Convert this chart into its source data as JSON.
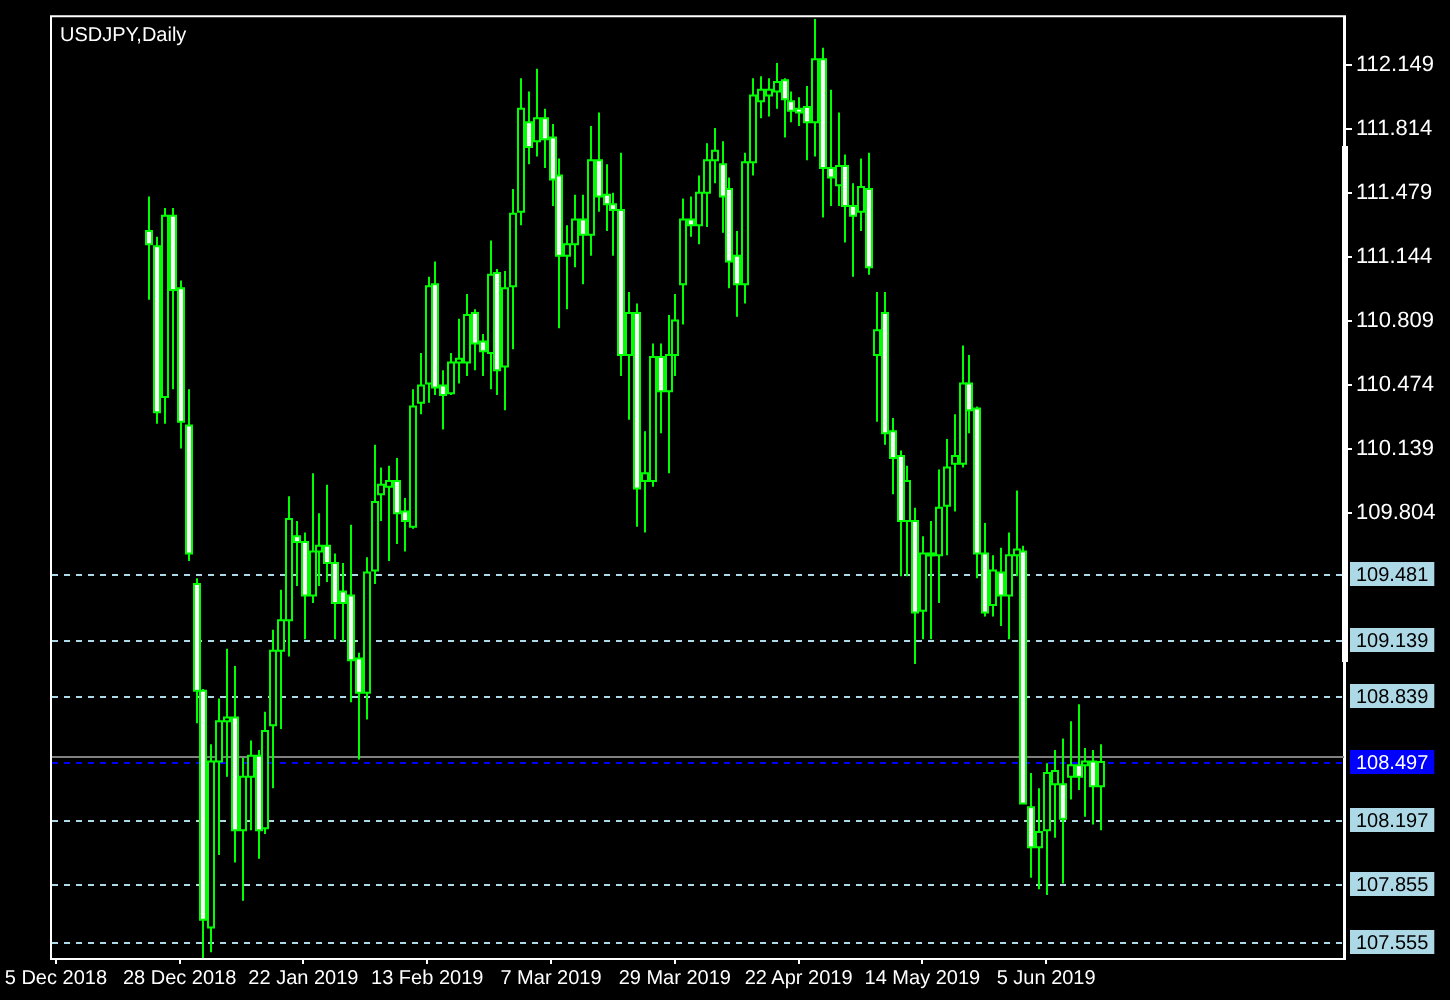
{
  "chart_data": {
    "type": "candlestick",
    "title": "USDJPY,Daily",
    "color": "#00ff00",
    "categories": [
      "5 Dec 2018",
      null,
      null,
      null,
      null,
      null,
      null,
      null,
      null,
      null,
      null,
      null,
      null,
      null,
      null,
      null,
      "28 Dec 2018",
      null,
      null,
      null,
      null,
      null,
      null,
      null,
      null,
      null,
      null,
      null,
      null,
      null,
      null,
      null,
      "22 Jan 2019",
      null,
      null,
      null,
      null,
      null,
      null,
      null,
      null,
      null,
      null,
      null,
      null,
      null,
      null,
      null,
      "13 Feb 2019",
      null,
      null,
      null,
      null,
      null,
      null,
      null,
      null,
      null,
      null,
      null,
      null,
      null,
      null,
      null,
      "7 Mar 2019",
      null,
      null,
      null,
      null,
      null,
      null,
      null,
      null,
      null,
      null,
      null,
      null,
      null,
      null,
      null,
      "29 Mar 2019",
      null,
      null,
      null,
      null,
      null,
      null,
      null,
      null,
      null,
      null,
      null,
      null,
      null,
      null,
      null,
      "22 Apr 2019",
      null,
      null,
      null,
      null,
      null,
      null,
      null,
      null,
      null,
      null,
      null,
      null,
      null,
      null,
      null,
      "14 May 2019",
      null,
      null,
      null,
      null,
      null,
      null,
      null,
      null,
      null,
      null,
      null,
      null,
      null,
      null,
      null,
      "5 Jun 2019",
      null,
      null,
      null,
      null,
      null,
      null,
      null,
      null,
      null,
      null,
      null,
      null,
      null,
      null,
      null,
      null,
      null,
      null,
      null,
      null,
      null,
      null,
      null,
      null,
      null,
      null,
      null,
      null,
      null,
      null,
      null,
      null,
      null,
      null,
      null,
      null,
      null,
      null
    ],
    "ohlc": [
      null,
      null,
      null,
      null,
      null,
      null,
      null,
      null,
      null,
      null,
      null,
      null,
      [
        111.28,
        111.46,
        110.92,
        111.21
      ],
      [
        111.2,
        111.25,
        110.27,
        110.33
      ],
      [
        110.41,
        111.4,
        110.27,
        111.36
      ],
      [
        111.36,
        111.4,
        110.45,
        110.97
      ],
      [
        110.98,
        111.02,
        110.14,
        110.28
      ],
      [
        110.26,
        110.45,
        109.55,
        109.59
      ],
      [
        109.43,
        109.46,
        108.7,
        108.87
      ],
      [
        108.87,
        108.88,
        107.47,
        107.67
      ],
      [
        107.63,
        108.59,
        107.5,
        108.5
      ],
      [
        108.5,
        108.83,
        108.01,
        108.71
      ],
      [
        108.71,
        109.09,
        108.42,
        108.73
      ],
      [
        108.73,
        109.0,
        107.97,
        108.14
      ],
      [
        108.14,
        108.52,
        107.77,
        108.42
      ],
      [
        108.42,
        108.61,
        108.14,
        108.53
      ],
      [
        108.53,
        108.56,
        107.99,
        108.14
      ],
      [
        108.15,
        108.76,
        108.12,
        108.66
      ],
      [
        108.69,
        109.19,
        108.36,
        109.08
      ],
      [
        109.08,
        109.4,
        108.67,
        109.24
      ],
      [
        109.24,
        109.89,
        109.05,
        109.77
      ],
      [
        109.68,
        109.76,
        109.42,
        109.65
      ],
      [
        109.65,
        109.7,
        109.14,
        109.37
      ],
      [
        109.37,
        110.01,
        109.33,
        109.6
      ],
      [
        109.6,
        109.8,
        109.42,
        109.63
      ],
      [
        109.63,
        109.95,
        109.44,
        109.54
      ],
      [
        109.54,
        109.59,
        109.14,
        109.33
      ],
      [
        109.39,
        109.54,
        109.13,
        109.33
      ],
      [
        109.37,
        109.74,
        108.81,
        109.03
      ],
      [
        109.04,
        109.07,
        108.51,
        108.86
      ],
      [
        108.86,
        109.57,
        108.72,
        109.49
      ],
      [
        109.5,
        110.16,
        109.43,
        109.86
      ],
      [
        109.9,
        110.04,
        109.76,
        109.95
      ],
      [
        109.94,
        110.05,
        109.55,
        109.97
      ],
      [
        109.97,
        110.09,
        109.64,
        109.8
      ],
      [
        109.81,
        109.88,
        109.6,
        109.76
      ],
      [
        109.73,
        110.45,
        109.72,
        110.36
      ],
      [
        110.38,
        110.64,
        110.32,
        110.47
      ],
      [
        110.48,
        111.04,
        110.38,
        110.99
      ],
      [
        111.0,
        111.12,
        110.42,
        110.46
      ],
      [
        110.47,
        110.55,
        110.24,
        110.42
      ],
      [
        110.43,
        110.64,
        110.42,
        110.59
      ],
      [
        110.59,
        110.82,
        110.48,
        110.61
      ],
      [
        110.59,
        110.95,
        110.52,
        110.84
      ],
      [
        110.85,
        110.87,
        110.55,
        110.69
      ],
      [
        110.7,
        110.74,
        110.52,
        110.65
      ],
      [
        110.64,
        111.23,
        110.45,
        111.05
      ],
      [
        111.06,
        111.08,
        110.42,
        110.55
      ],
      [
        110.57,
        111.07,
        110.34,
        110.98
      ],
      [
        110.99,
        111.5,
        110.66,
        111.37
      ],
      [
        111.38,
        112.08,
        111.31,
        111.92
      ],
      [
        111.85,
        112.01,
        111.63,
        111.72
      ],
      [
        111.75,
        112.13,
        111.67,
        111.87
      ],
      [
        111.87,
        111.92,
        111.61,
        111.76
      ],
      [
        111.77,
        111.84,
        111.41,
        111.55
      ],
      [
        111.57,
        111.66,
        110.77,
        111.15
      ],
      [
        111.15,
        111.31,
        110.87,
        111.21
      ],
      [
        111.21,
        111.47,
        111.09,
        111.34
      ],
      [
        111.34,
        111.47,
        111.0,
        111.26
      ],
      [
        111.26,
        111.83,
        111.15,
        111.65
      ],
      [
        111.65,
        111.9,
        111.38,
        111.46
      ],
      [
        111.47,
        111.63,
        111.28,
        111.42
      ],
      [
        111.42,
        111.48,
        111.15,
        111.39
      ],
      [
        111.39,
        111.69,
        110.52,
        110.63
      ],
      [
        110.63,
        110.96,
        110.29,
        110.85
      ],
      [
        110.85,
        110.9,
        109.73,
        109.93
      ],
      [
        109.97,
        110.23,
        109.7,
        110.01
      ],
      [
        109.97,
        110.69,
        109.94,
        110.62
      ],
      [
        110.62,
        110.69,
        110.22,
        110.44
      ],
      [
        110.44,
        110.84,
        110.01,
        110.63
      ],
      [
        110.63,
        110.95,
        110.52,
        110.81
      ],
      [
        111.0,
        111.45,
        110.79,
        111.34
      ],
      [
        111.34,
        111.46,
        111.25,
        111.31
      ],
      [
        111.31,
        111.57,
        111.21,
        111.48
      ],
      [
        111.48,
        111.74,
        111.3,
        111.65
      ],
      [
        111.65,
        111.82,
        111.53,
        111.7
      ],
      [
        111.63,
        111.75,
        111.27,
        111.46
      ],
      [
        111.5,
        111.56,
        110.98,
        111.12
      ],
      [
        111.15,
        111.28,
        110.83,
        111.0
      ],
      [
        111.0,
        111.69,
        110.9,
        111.64
      ],
      [
        111.64,
        112.08,
        111.57,
        111.99
      ],
      [
        111.96,
        112.09,
        111.87,
        112.02
      ],
      [
        111.99,
        112.08,
        111.88,
        112.02
      ],
      [
        112.01,
        112.16,
        111.92,
        112.06
      ],
      [
        112.07,
        112.08,
        111.77,
        111.97
      ],
      [
        111.96,
        112.01,
        111.85,
        111.91
      ],
      [
        111.92,
        111.98,
        111.83,
        111.9
      ],
      [
        111.93,
        112.04,
        111.65,
        111.85
      ],
      [
        111.85,
        112.39,
        111.67,
        112.18
      ],
      [
        112.18,
        112.24,
        111.35,
        111.61
      ],
      [
        111.61,
        112.02,
        111.41,
        111.56
      ],
      [
        111.52,
        111.9,
        111.41,
        111.62
      ],
      [
        111.62,
        111.68,
        111.22,
        111.41
      ],
      [
        111.41,
        111.53,
        111.04,
        111.36
      ],
      [
        111.38,
        111.66,
        111.28,
        111.51
      ],
      [
        111.5,
        111.69,
        111.05,
        111.09
      ],
      [
        110.63,
        110.96,
        110.28,
        110.76
      ],
      [
        110.85,
        110.96,
        110.16,
        110.22
      ],
      [
        110.23,
        110.3,
        109.9,
        110.09
      ],
      [
        110.1,
        110.13,
        109.47,
        109.76
      ],
      [
        109.76,
        110.05,
        109.47,
        109.97
      ],
      [
        109.76,
        109.83,
        109.01,
        109.28
      ],
      [
        109.29,
        109.68,
        109.14,
        109.59
      ],
      [
        109.58,
        109.76,
        109.14,
        109.59
      ],
      [
        109.58,
        110.03,
        109.33,
        109.83
      ],
      [
        109.84,
        110.19,
        109.58,
        110.04
      ],
      [
        110.06,
        110.32,
        109.81,
        110.1
      ],
      [
        110.06,
        110.68,
        110.04,
        110.48
      ],
      [
        110.48,
        110.63,
        110.22,
        110.34
      ],
      [
        110.35,
        110.36,
        109.46,
        109.59
      ],
      [
        109.59,
        109.75,
        109.26,
        109.28
      ],
      [
        109.32,
        109.58,
        109.26,
        109.5
      ],
      [
        109.49,
        109.62,
        109.21,
        109.37
      ],
      [
        109.37,
        109.7,
        109.14,
        109.58
      ],
      [
        109.58,
        109.92,
        109.47,
        109.61
      ],
      [
        109.6,
        109.63,
        108.28,
        108.28
      ],
      [
        108.26,
        108.44,
        107.89,
        108.05
      ],
      [
        108.05,
        108.36,
        107.83,
        108.13
      ],
      [
        108.14,
        108.49,
        107.8,
        108.44
      ],
      [
        108.38,
        108.56,
        108.1,
        108.45
      ],
      [
        108.38,
        108.62,
        107.86,
        108.2
      ],
      [
        108.42,
        108.71,
        108.3,
        108.48
      ],
      [
        108.48,
        108.8,
        108.35,
        108.42
      ],
      [
        108.48,
        108.57,
        108.21,
        108.5
      ],
      [
        108.5,
        108.56,
        108.17,
        108.37
      ],
      [
        108.37,
        108.59,
        108.14,
        108.497
      ],
      null,
      null,
      null,
      null,
      null,
      null,
      null,
      null,
      null,
      null,
      null,
      null,
      null,
      null,
      null,
      null,
      null,
      null,
      null,
      null,
      null,
      null,
      null,
      null,
      null,
      null,
      null,
      null,
      null,
      null,
      null
    ],
    "ylim": [
      107.47,
      112.4
    ],
    "yticks": [
      112.149,
      111.814,
      111.479,
      111.144,
      110.809,
      110.474,
      110.139,
      109.804
    ],
    "ref_lines": [
      {
        "axis": "y",
        "value": 109.481,
        "label": "109.481",
        "color": "#add8e6",
        "line_style": "dashed"
      },
      {
        "axis": "y",
        "value": 109.139,
        "label": "109.139",
        "color": "#add8e6",
        "line_style": "dashed"
      },
      {
        "axis": "y",
        "value": 108.839,
        "label": "108.839",
        "color": "#add8e6",
        "line_style": "dashed"
      },
      {
        "axis": "y",
        "value": 108.197,
        "label": "108.197",
        "color": "#add8e6",
        "line_style": "dashed"
      },
      {
        "axis": "y",
        "value": 107.855,
        "label": "107.855",
        "color": "#add8e6",
        "line_style": "dashed"
      },
      {
        "axis": "y",
        "value": 107.555,
        "label": "107.555",
        "color": "#add8e6",
        "line_style": "dashed"
      },
      {
        "axis": "y",
        "value": 108.53,
        "label": null,
        "color": "#808080",
        "line_style": "solid"
      },
      {
        "axis": "y",
        "value": 108.497,
        "label": "108.497",
        "color": "#0000ff",
        "line_style": "dashed"
      }
    ]
  }
}
